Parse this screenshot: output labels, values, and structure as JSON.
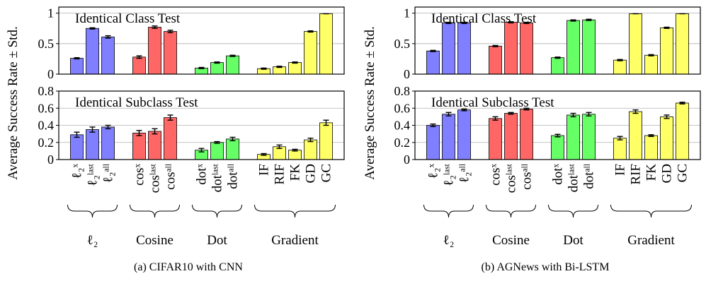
{
  "figure": {
    "y_axis_label": "Average Success Rate ± Std.",
    "group_labels": [
      "ℓ₂",
      "Cosine",
      "Dot",
      "Gradient"
    ],
    "method_labels": [
      [
        "ℓ₂ˣ",
        "ℓ₂ˡᵃˢᵗ",
        "ℓ₂ᵃˡˡ"
      ],
      [
        "cosˣ",
        "cosˡᵃˢᵗ",
        "cosᵃˡˡ"
      ],
      [
        "dotˣ",
        "dotˡᵃˢᵗ",
        "dotᵃˡˡ"
      ],
      [
        "IF",
        "RIF",
        "FK",
        "GD",
        "GC"
      ]
    ],
    "group_colors": [
      "#7f7fff",
      "#ff6666",
      "#66ff66",
      "#ffff66"
    ],
    "captions": [
      "(a) CIFAR10 with CNN",
      "(b) AGNews with Bi-LSTM"
    ]
  },
  "chart_data": [
    {
      "type": "bar",
      "title": "Identical Class Test",
      "subfigure": "(a) CIFAR10 with CNN",
      "ylim": [
        0,
        1.1
      ],
      "yticks": [
        "0",
        "0.5",
        "1"
      ],
      "grid": true,
      "series": [
        {
          "name": "ℓ₂",
          "values": [
            0.26,
            0.75,
            0.61
          ],
          "errors": [
            0.01,
            0.01,
            0.02
          ]
        },
        {
          "name": "Cosine",
          "values": [
            0.28,
            0.77,
            0.7
          ],
          "errors": [
            0.02,
            0.02,
            0.02
          ]
        },
        {
          "name": "Dot",
          "values": [
            0.1,
            0.19,
            0.3
          ],
          "errors": [
            0.01,
            0.01,
            0.01
          ]
        },
        {
          "name": "Gradient",
          "values": [
            0.09,
            0.12,
            0.19,
            0.7,
            0.99
          ],
          "errors": [
            0.01,
            0.01,
            0.01,
            0.01,
            0.0
          ]
        }
      ]
    },
    {
      "type": "bar",
      "title": "Identical Subclass Test",
      "subfigure": "(a) CIFAR10 with CNN",
      "ylim": [
        0,
        0.8
      ],
      "yticks": [
        "0",
        "0.2",
        "0.4",
        "0.6",
        "0.8"
      ],
      "grid": true,
      "series": [
        {
          "name": "ℓ₂",
          "values": [
            0.29,
            0.35,
            0.38
          ],
          "errors": [
            0.03,
            0.03,
            0.02
          ]
        },
        {
          "name": "Cosine",
          "values": [
            0.31,
            0.33,
            0.49
          ],
          "errors": [
            0.03,
            0.03,
            0.03
          ]
        },
        {
          "name": "Dot",
          "values": [
            0.11,
            0.2,
            0.24
          ],
          "errors": [
            0.02,
            0.01,
            0.02
          ]
        },
        {
          "name": "Gradient",
          "values": [
            0.06,
            0.15,
            0.11,
            0.23,
            0.43
          ],
          "errors": [
            0.01,
            0.02,
            0.01,
            0.02,
            0.03
          ]
        }
      ]
    },
    {
      "type": "bar",
      "title": "Identical Class Test",
      "subfigure": "(b) AGNews with Bi-LSTM",
      "ylim": [
        0,
        1.1
      ],
      "yticks": [
        "0",
        "0.5",
        "1"
      ],
      "grid": true,
      "series": [
        {
          "name": "ℓ₂",
          "values": [
            0.38,
            0.84,
            0.84
          ],
          "errors": [
            0.01,
            0.01,
            0.01
          ]
        },
        {
          "name": "Cosine",
          "values": [
            0.46,
            0.85,
            0.84
          ],
          "errors": [
            0.01,
            0.01,
            0.01
          ]
        },
        {
          "name": "Dot",
          "values": [
            0.27,
            0.88,
            0.89
          ],
          "errors": [
            0.01,
            0.01,
            0.01
          ]
        },
        {
          "name": "Gradient",
          "values": [
            0.23,
            0.99,
            0.31,
            0.76,
            0.99
          ],
          "errors": [
            0.01,
            0.0,
            0.01,
            0.01,
            0.0
          ]
        }
      ]
    },
    {
      "type": "bar",
      "title": "Identical Subclass Test",
      "subfigure": "(b) AGNews with Bi-LSTM",
      "ylim": [
        0,
        0.8
      ],
      "yticks": [
        "0",
        "0.2",
        "0.4",
        "0.6",
        "0.8"
      ],
      "grid": true,
      "series": [
        {
          "name": "ℓ₂",
          "values": [
            0.4,
            0.53,
            0.58
          ],
          "errors": [
            0.015,
            0.02,
            0.01
          ]
        },
        {
          "name": "Cosine",
          "values": [
            0.48,
            0.54,
            0.59
          ],
          "errors": [
            0.02,
            0.01,
            0.01
          ]
        },
        {
          "name": "Dot",
          "values": [
            0.28,
            0.52,
            0.53
          ],
          "errors": [
            0.015,
            0.02,
            0.02
          ]
        },
        {
          "name": "Gradient",
          "values": [
            0.25,
            0.56,
            0.28,
            0.5,
            0.66
          ],
          "errors": [
            0.02,
            0.02,
            0.01,
            0.02,
            0.01
          ]
        }
      ]
    }
  ]
}
